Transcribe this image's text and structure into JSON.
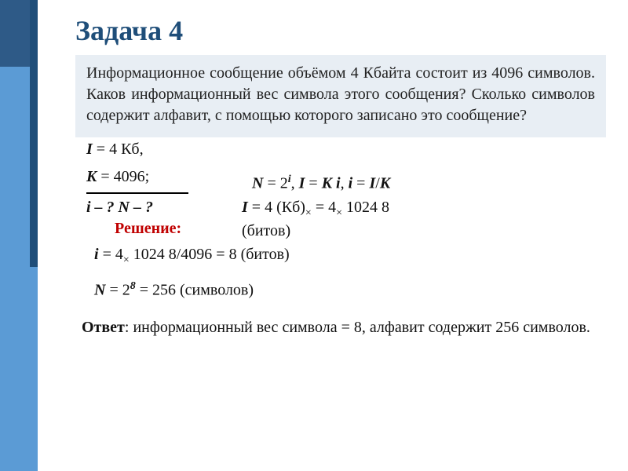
{
  "title": "Задача 4",
  "problem_text": "Информационное сообщение объёмом 4 Кбайта состоит из 4096 символов. Каков информационный вес символа этого сообщения? Сколько символов содержит алфавит, с помощью которого записано это сообщение?",
  "solution_label": "Решение:",
  "given": {
    "line1_var": "I",
    "line1_rest": " = 4 Кб,",
    "line2_var": "K",
    "line2_rest": " = 4096;",
    "find": "i – ?  N  –  ?"
  },
  "formulas": {
    "line1": "N = 2ⁱ,  I = K ×  i,    i = I/K",
    "line2": "I =  4  (Кб) × =  4 × 1024    8",
    "line2b": "(битов)",
    "line3": "i = 4 ×   1024    8/4096 = 8 (битов)",
    "line4": "N = 2⁸ = 256 (символов)"
  },
  "answer": {
    "label": "Ответ",
    "text": ": информационный вес символа = 8, алфавит содержит 256 символов."
  },
  "colors": {
    "accent_dark": "#2e5a87",
    "accent_light": "#5b9bd5",
    "accent_inner": "#1f4e79",
    "title": "#1f4e79",
    "problem_bg": "#e8eef4",
    "solution_red": "#c00000"
  }
}
